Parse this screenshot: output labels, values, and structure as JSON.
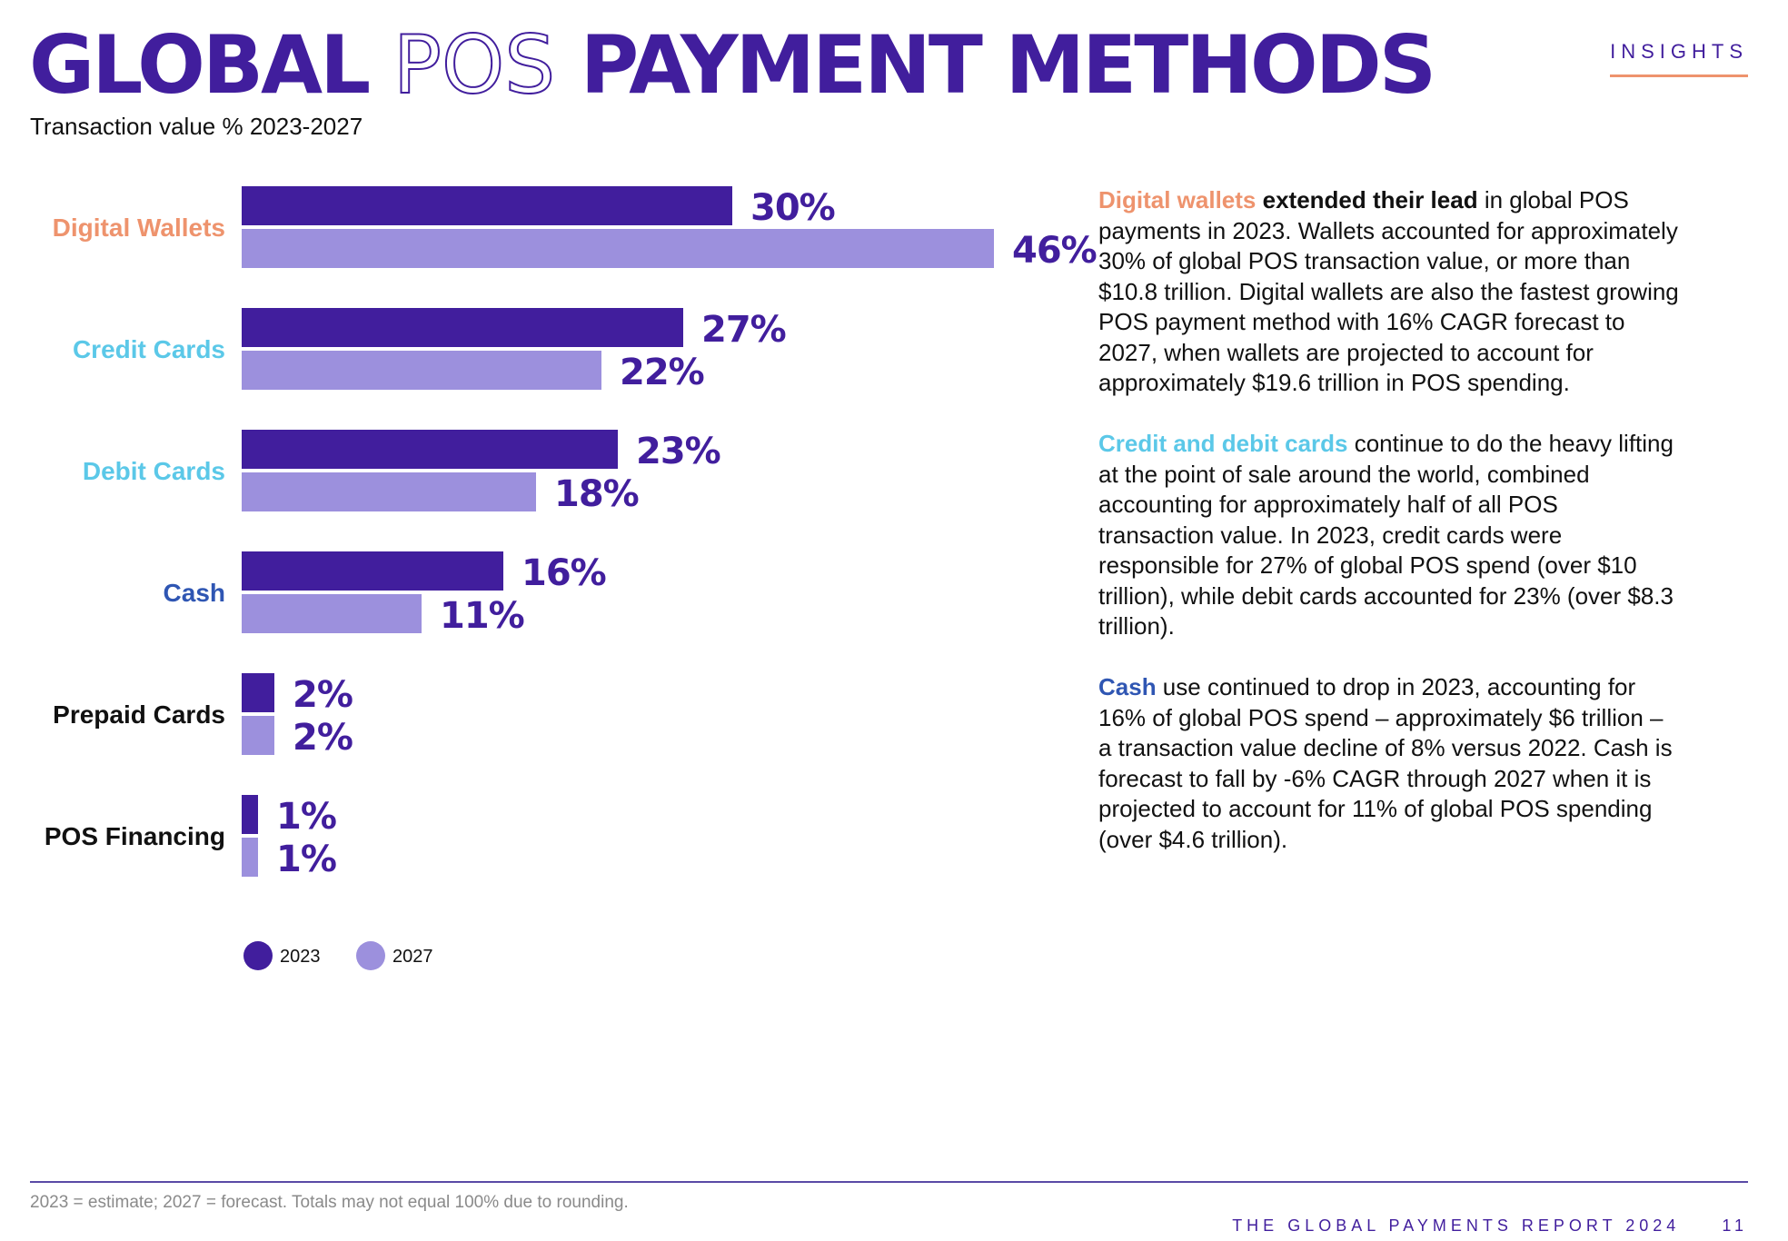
{
  "header": {
    "title_part1": "GLOBAL",
    "title_part2": "POS",
    "title_part3": "PAYMENT METHODS",
    "subtitle": "Transaction value % 2023-2027",
    "section_label": "INSIGHTS"
  },
  "colors": {
    "series_2023": "#411e9d",
    "series_2027": "#9c90dd",
    "digital_wallets": "#ee936d",
    "cards": "#5bc8e8",
    "cash": "#2f56b3",
    "other": "#111111"
  },
  "chart_data": {
    "type": "bar",
    "orientation": "horizontal",
    "categories": [
      "Digital Wallets",
      "Credit Cards",
      "Debit Cards",
      "Cash",
      "Prepaid Cards",
      "POS Financing"
    ],
    "category_colors": [
      "#ee936d",
      "#5bc8e8",
      "#5bc8e8",
      "#2f56b3",
      "#111111",
      "#111111"
    ],
    "series": [
      {
        "name": "2023",
        "color": "#411e9d",
        "values": [
          30,
          27,
          23,
          16,
          2,
          1
        ]
      },
      {
        "name": "2027",
        "color": "#9c90dd",
        "values": [
          46,
          22,
          18,
          11,
          2,
          1
        ]
      }
    ],
    "value_suffix": "%",
    "legend_position": "bottom-left",
    "grid": false,
    "axes_visible": false
  },
  "body": {
    "p1": {
      "lead": "Digital wallets",
      "bold": "extended their lead",
      "rest": " in global POS payments in 2023. Wallets accounted for approximately 30% of global POS transaction value, or more than $10.8 trillion. Digital wallets are also the fastest growing POS payment method with 16% CAGR forecast to 2027, when wallets are projected to account for approximately $19.6 trillion in POS spending."
    },
    "p2": {
      "lead": "Credit and debit cards",
      "rest": " continue to do the heavy lifting at the point of sale around the world, combined accounting for approximately half of all POS transaction value. In 2023, credit cards were responsible for 27% of global POS spend (over $10 trillion), while debit cards accounted for 23% (over $8.3 trillion)."
    },
    "p3": {
      "lead": "Cash",
      "rest": " use continued to drop in 2023, accounting for 16% of global POS spend – approximately $6 trillion – a transaction value decline of 8% versus 2022. Cash is forecast to fall by -6% CAGR through 2027 when it is projected to account for 11% of global POS spending (over $4.6 trillion)."
    }
  },
  "footer": {
    "footnote": "2023 = estimate; 2027 = forecast. Totals may not equal 100% due to rounding.",
    "report_title": "THE GLOBAL PAYMENTS REPORT 2024",
    "page_number": "11"
  }
}
